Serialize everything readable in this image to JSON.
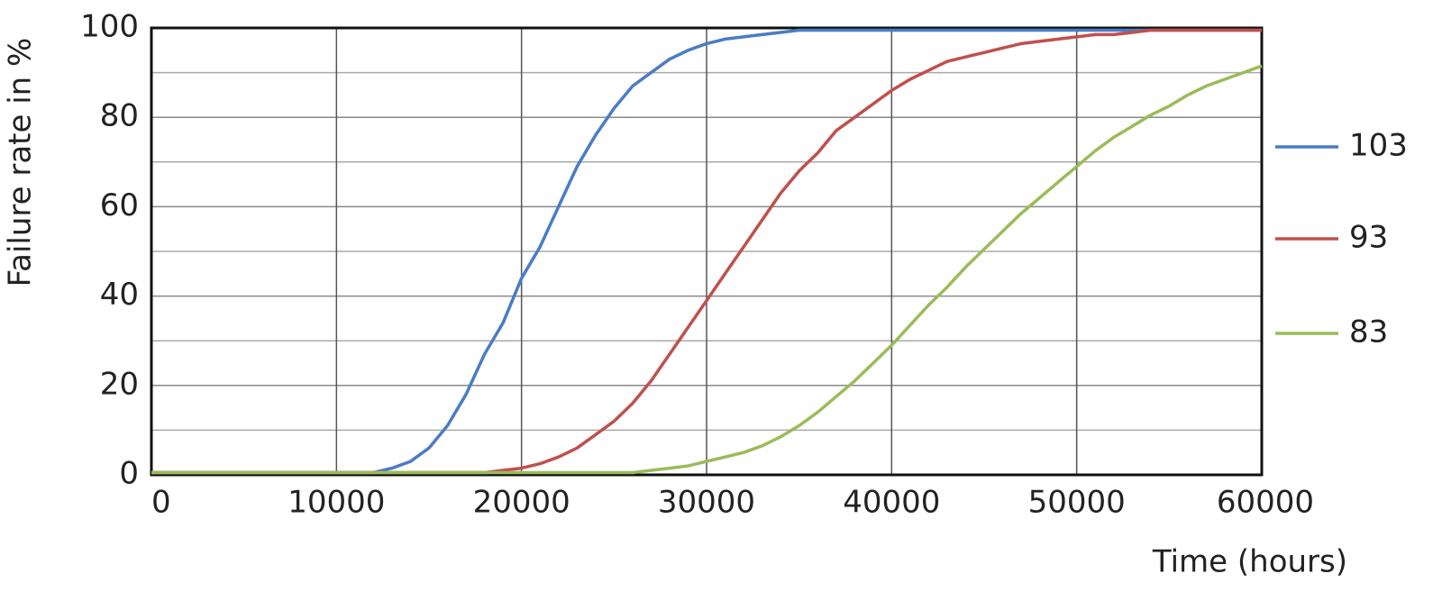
{
  "chart_data": {
    "type": "line",
    "y_label": "Failure rate in %",
    "x_label": "Time (hours)",
    "x": [
      0,
      1000,
      2000,
      3000,
      4000,
      5000,
      6000,
      7000,
      8000,
      9000,
      10000,
      11000,
      12000,
      13000,
      14000,
      15000,
      16000,
      17000,
      18000,
      19000,
      20000,
      21000,
      22000,
      23000,
      24000,
      25000,
      26000,
      27000,
      28000,
      29000,
      30000,
      31000,
      32000,
      33000,
      34000,
      35000,
      36000,
      37000,
      38000,
      39000,
      40000,
      41000,
      42000,
      43000,
      44000,
      45000,
      46000,
      47000,
      48000,
      49000,
      50000,
      51000,
      52000,
      53000,
      54000,
      55000,
      56000,
      57000,
      58000,
      59000,
      60000
    ],
    "series": [
      {
        "name": "103",
        "color": "#4a7cc4",
        "values": [
          0.5,
          0.5,
          0.5,
          0.5,
          0.5,
          0.5,
          0.5,
          0.5,
          0.5,
          0.5,
          0.5,
          0.5,
          0.5,
          1.5,
          3,
          6,
          11,
          18,
          27,
          34,
          44,
          51,
          60,
          69,
          76,
          82,
          87,
          90,
          93,
          95,
          96.5,
          97.5,
          98,
          98.5,
          99,
          99.5,
          99.5,
          99.5,
          99.5,
          99.5,
          99.5,
          99.5,
          99.5,
          99.5,
          99.5,
          99.5,
          99.5,
          99.5,
          99.5,
          99.5,
          99.5,
          99.5,
          99.5,
          99.5,
          99.5,
          99.5,
          99.5,
          99.5,
          99.5,
          99.5,
          99.5
        ]
      },
      {
        "name": "93",
        "color": "#c0504d",
        "values": [
          0.5,
          0.5,
          0.5,
          0.5,
          0.5,
          0.5,
          0.5,
          0.5,
          0.5,
          0.5,
          0.5,
          0.5,
          0.5,
          0.5,
          0.5,
          0.5,
          0.5,
          0.5,
          0.5,
          1,
          1.5,
          2.5,
          4,
          6,
          9,
          12,
          16,
          21,
          27,
          33,
          39,
          45,
          51,
          57,
          63,
          68,
          72,
          77,
          80,
          83,
          86,
          88.5,
          90.5,
          92.5,
          93.5,
          94.5,
          95.5,
          96.5,
          97,
          97.5,
          98,
          98.5,
          98.5,
          99,
          99.5,
          99.5,
          99.5,
          99.5,
          99.5,
          99.5,
          99.5
        ]
      },
      {
        "name": "83",
        "color": "#9bbb59",
        "values": [
          0.5,
          0.5,
          0.5,
          0.5,
          0.5,
          0.5,
          0.5,
          0.5,
          0.5,
          0.5,
          0.5,
          0.5,
          0.5,
          0.5,
          0.5,
          0.5,
          0.5,
          0.5,
          0.5,
          0.5,
          0.5,
          0.5,
          0.5,
          0.5,
          0.5,
          0.5,
          0.5,
          1,
          1.5,
          2,
          3,
          4,
          5,
          6.5,
          8.5,
          11,
          14,
          17.5,
          21,
          25,
          29,
          33.5,
          38,
          42,
          46.5,
          50.5,
          54.5,
          58.5,
          62,
          65.5,
          69,
          72.5,
          75.5,
          78,
          80.5,
          82.5,
          85,
          87,
          88.5,
          90,
          91.5
        ]
      }
    ],
    "xlim": [
      0,
      60000
    ],
    "xticks": [
      0,
      10000,
      20000,
      30000,
      40000,
      50000,
      60000
    ],
    "ylim": [
      0,
      100
    ],
    "yticks": [
      0,
      20,
      40,
      60,
      80,
      100
    ],
    "minor_yticks": [
      10,
      30,
      50,
      70,
      90
    ],
    "grid": true,
    "legend": "right"
  }
}
